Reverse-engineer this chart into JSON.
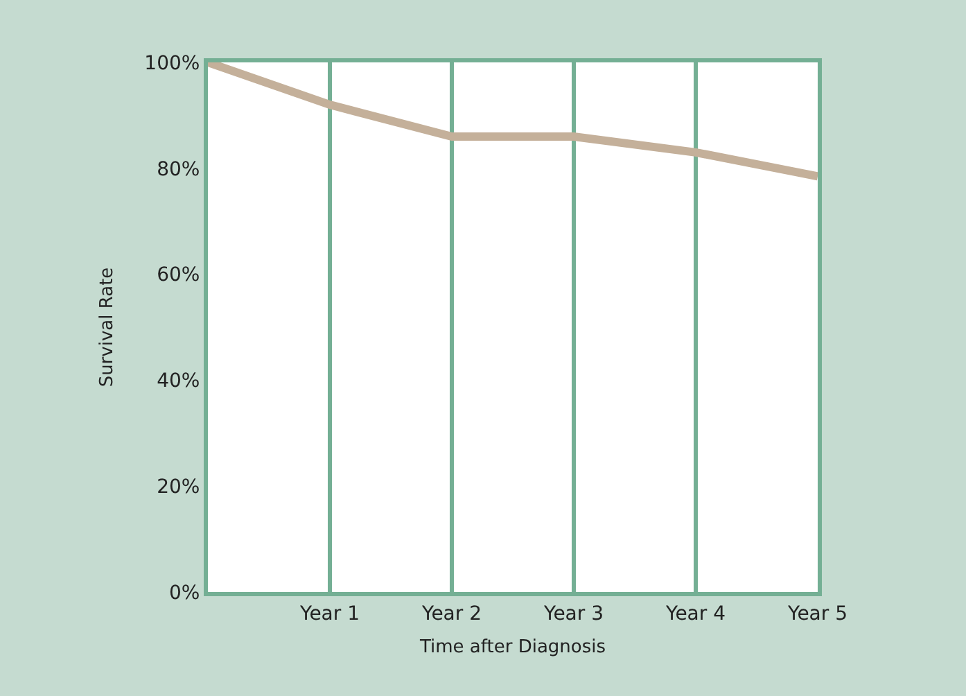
{
  "chart_data": {
    "type": "line",
    "xlabel": "Time after Diagnosis",
    "ylabel": "Survival Rate",
    "categories": [
      null,
      "Year 1",
      "Year 2",
      "Year 3",
      "Year 4",
      "Year 5"
    ],
    "series": [
      {
        "color": "#c4b09a",
        "values": [
          100,
          92,
          86,
          86,
          83,
          78.5
        ]
      }
    ],
    "ylim": [
      0,
      100
    ],
    "yticks": [
      {
        "value": 0,
        "label": "0%"
      },
      {
        "value": 20,
        "label": "20%"
      },
      {
        "value": 40,
        "label": "40%"
      },
      {
        "value": 60,
        "label": "60%"
      },
      {
        "value": 80,
        "label": "80%"
      },
      {
        "value": 100,
        "label": "100%"
      }
    ],
    "grid": "x",
    "marker": "none",
    "line_style": "solid"
  }
}
